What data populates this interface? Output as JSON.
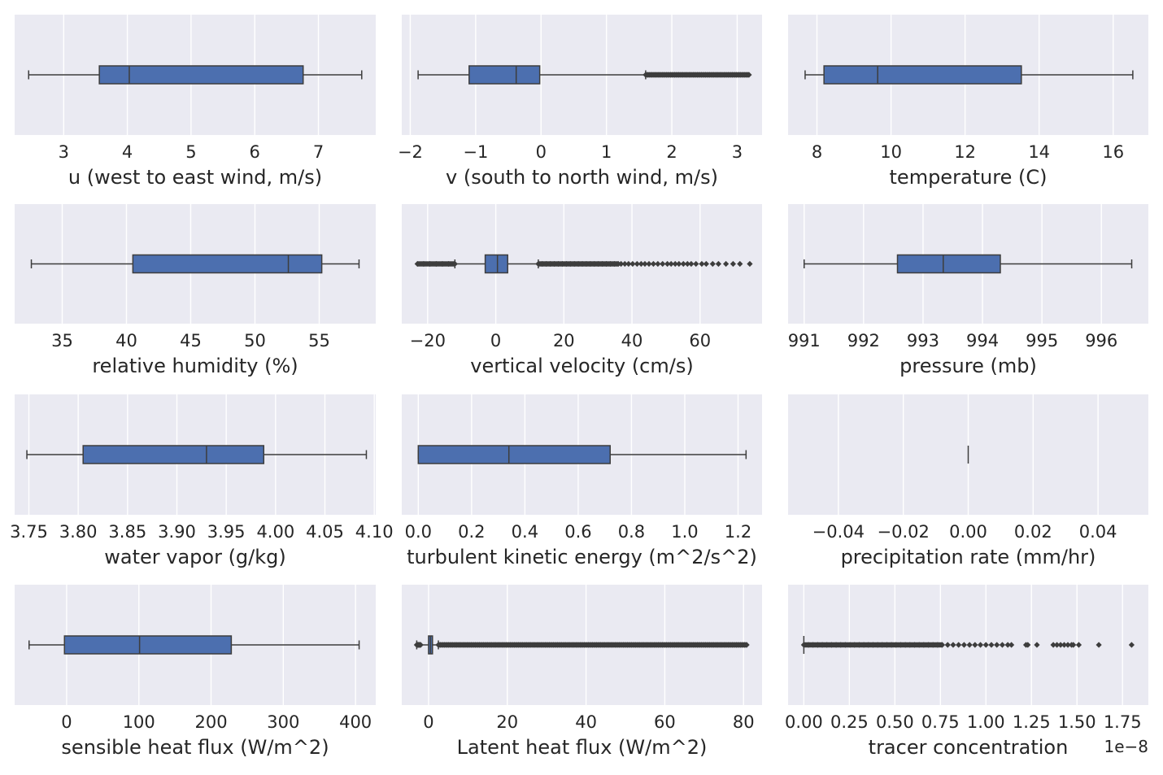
{
  "figure": {
    "background": "#ffffff",
    "panel_bg": "#eaeaf2",
    "grid_color": "#ffffff",
    "box_color": "#4c6faf",
    "line_color": "#3d3d3d"
  },
  "chart_data": [
    {
      "type": "box",
      "xlabel": "u (west to east wind, m/s)",
      "xlim": [
        2.23,
        7.9
      ],
      "ticks": [
        3,
        4,
        5,
        6,
        7
      ],
      "tick_labels": [
        "3",
        "4",
        "5",
        "6",
        "7"
      ],
      "whisker_low": 2.45,
      "q1": 3.56,
      "median": 4.03,
      "q3": 6.76,
      "whisker_high": 7.68,
      "outliers": []
    },
    {
      "type": "box",
      "xlabel": "v (south to north wind, m/s)",
      "xlim": [
        -2.13,
        3.38
      ],
      "ticks": [
        -2,
        -1,
        0,
        1,
        2,
        3
      ],
      "tick_labels": [
        "−2",
        "−1",
        "0",
        "1",
        "2",
        "3"
      ],
      "whisker_low": -1.88,
      "q1": -1.1,
      "median": -0.38,
      "q3": -0.02,
      "whisker_high": 1.6,
      "outlier_band": [
        1.6,
        3.18
      ],
      "outlier_band_density": 50,
      "outliers": []
    },
    {
      "type": "box",
      "xlabel": "temperature (C)",
      "xlim": [
        7.22,
        16.95
      ],
      "ticks": [
        8,
        10,
        12,
        14,
        16
      ],
      "tick_labels": [
        "8",
        "10",
        "12",
        "14",
        "16"
      ],
      "whisker_low": 7.68,
      "q1": 8.19,
      "median": 9.64,
      "q3": 13.52,
      "whisker_high": 16.53,
      "outliers": []
    },
    {
      "type": "box",
      "xlabel": "relative humidity (%)",
      "xlim": [
        31.3,
        59.4
      ],
      "ticks": [
        35,
        40,
        45,
        50,
        55
      ],
      "tick_labels": [
        "35",
        "40",
        "45",
        "50",
        "55"
      ],
      "whisker_low": 32.6,
      "q1": 40.5,
      "median": 52.6,
      "q3": 55.2,
      "whisker_high": 58.1,
      "outliers": []
    },
    {
      "type": "box",
      "xlabel": "vertical velocity (cm/s)",
      "xlim": [
        -27.6,
        78.2
      ],
      "ticks": [
        -20,
        0,
        20,
        40,
        60
      ],
      "tick_labels": [
        "−20",
        "0",
        "20",
        "40",
        "60"
      ],
      "whisker_low": -12.0,
      "q1": -3.1,
      "median": 0.5,
      "q3": 3.5,
      "whisker_high": 12.5,
      "outlier_band_low": [
        -23.0,
        -12.0
      ],
      "outlier_band": [
        12.5,
        36.0
      ],
      "outlier_band_density": 20,
      "outliers": [
        36.8,
        37.9,
        39.0,
        40.2,
        41.5,
        42.7,
        43.8,
        45.0,
        46.3,
        47.6,
        49.0,
        50.4,
        51.5,
        52.7,
        53.8,
        55.1,
        56.3,
        57.4,
        58.8,
        60.5,
        61.8,
        63.7,
        65.4,
        67.6,
        69.7,
        71.7,
        74.6
      ]
    },
    {
      "type": "box",
      "xlabel": "pressure (mb)",
      "xlim": [
        990.73,
        996.79
      ],
      "ticks": [
        991,
        992,
        993,
        994,
        995,
        996
      ],
      "tick_labels": [
        "991",
        "992",
        "993",
        "994",
        "995",
        "996"
      ],
      "whisker_low": 991.0,
      "q1": 992.57,
      "median": 993.34,
      "q3": 994.3,
      "whisker_high": 996.51,
      "outliers": []
    },
    {
      "type": "box",
      "xlabel": "water vapor  (g/kg)",
      "xlim": [
        3.7356,
        4.1015
      ],
      "ticks": [
        3.75,
        3.8,
        3.85,
        3.9,
        3.95,
        4.0,
        4.05,
        4.1
      ],
      "tick_labels": [
        "3.75",
        "3.80",
        "3.85",
        "3.90",
        "3.95",
        "4.00",
        "4.05",
        "4.10"
      ],
      "whisker_low": 3.748,
      "q1": 3.805,
      "median": 3.93,
      "q3": 3.988,
      "whisker_high": 4.092,
      "outliers": []
    },
    {
      "type": "box",
      "xlabel": "turbulent kinetic energy (m^2/s^2)",
      "xlim": [
        -0.062,
        1.29
      ],
      "ticks": [
        0.0,
        0.2,
        0.4,
        0.6,
        0.8,
        1.0,
        1.2
      ],
      "tick_labels": [
        "0.0",
        "0.2",
        "0.4",
        "0.6",
        "0.8",
        "1.0",
        "1.2"
      ],
      "whisker_low": 0.0,
      "q1": 0.0,
      "median": 0.34,
      "q3": 0.72,
      "whisker_high": 1.23,
      "outliers": []
    },
    {
      "type": "box",
      "xlabel": "precipitation rate (mm/hr)",
      "xlim": [
        -0.0555,
        0.0555
      ],
      "ticks": [
        -0.04,
        -0.02,
        0.0,
        0.02,
        0.04
      ],
      "tick_labels": [
        "−0.04",
        "−0.02",
        "0.00",
        "0.02",
        "0.04"
      ],
      "whisker_low": 0.0,
      "q1": 0.0,
      "median": 0.0,
      "q3": 0.0,
      "whisker_high": 0.0,
      "outliers": []
    },
    {
      "type": "box",
      "xlabel": "sensible heat flux (W/m^2)",
      "xlim": [
        -72,
        428
      ],
      "ticks": [
        0,
        100,
        200,
        300,
        400
      ],
      "tick_labels": [
        "0",
        "100",
        "200",
        "300",
        "400"
      ],
      "whisker_low": -52,
      "q1": -3,
      "median": 101,
      "q3": 228,
      "whisker_high": 405,
      "outliers": []
    },
    {
      "type": "box",
      "xlabel": "Latent heat flux (W/m^2)",
      "xlim": [
        -6.8,
        84.7
      ],
      "ticks": [
        0,
        20,
        40,
        60,
        80
      ],
      "tick_labels": [
        "0",
        "20",
        "40",
        "60",
        "80"
      ],
      "whisker_low": -3.0,
      "q1": 0.0,
      "median": 0.5,
      "q3": 1.0,
      "whisker_high": 2.5,
      "outlier_band_low": [
        -3.0,
        -2.0
      ],
      "outlier_band": [
        2.5,
        80.8
      ],
      "outlier_band_density": 150,
      "outliers": []
    },
    {
      "type": "box",
      "xlabel": "tracer concentration",
      "offset_label": "1e−8",
      "xlim": [
        -0.0865,
        1.892
      ],
      "ticks": [
        0.0,
        0.25,
        0.5,
        0.75,
        1.0,
        1.25,
        1.5,
        1.75
      ],
      "tick_labels": [
        "0.00",
        "0.25",
        "0.50",
        "0.75",
        "1.00",
        "1.25",
        "1.50",
        "1.75"
      ],
      "whisker_low": 0.0,
      "q1": 0.0,
      "median": 0.0,
      "q3": 0.0,
      "whisker_high": 0.0,
      "outlier_band": [
        0.0,
        0.76
      ],
      "outlier_band_density": 30,
      "outliers": [
        0.79,
        0.82,
        0.85,
        0.88,
        0.91,
        0.94,
        0.97,
        1.0,
        1.03,
        1.06,
        1.09,
        1.12,
        1.14,
        1.22,
        1.23,
        1.28,
        1.37,
        1.39,
        1.41,
        1.43,
        1.45,
        1.47,
        1.48,
        1.51,
        1.62,
        1.8
      ]
    }
  ]
}
